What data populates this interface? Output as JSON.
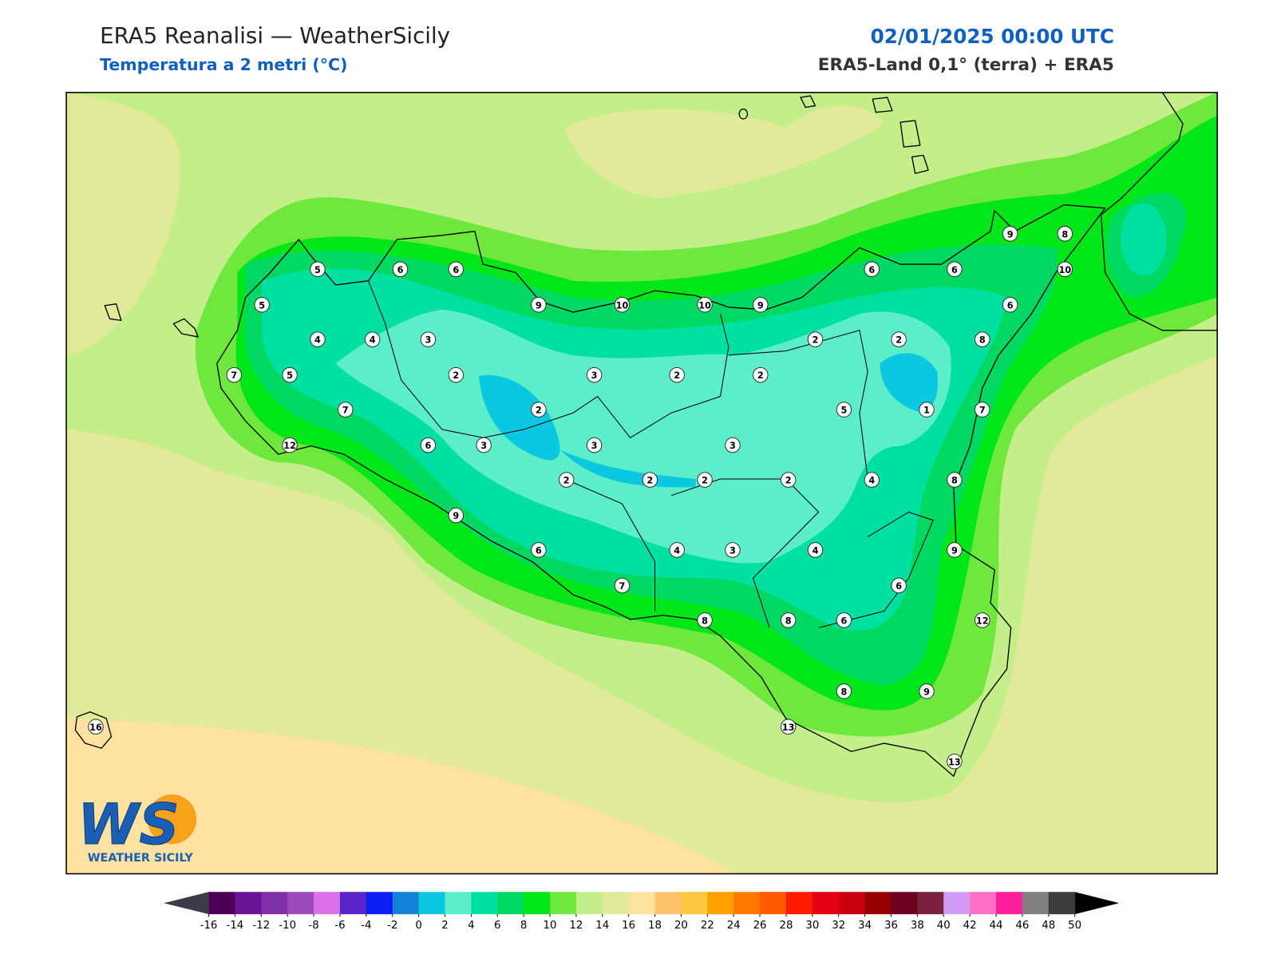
{
  "header": {
    "title": "ERA5 Reanalisi — WeatherSicily",
    "subtitle": "Temperatura a 2 metri (°C)",
    "datetime": "02/01/2025 00:00 UTC",
    "source": "ERA5-Land 0,1° (terra) + ERA5"
  },
  "map": {
    "stations": [
      5,
      6,
      6,
      5,
      9,
      10,
      10,
      9,
      6,
      6,
      9,
      8,
      10,
      6,
      4,
      4,
      3,
      2,
      2,
      8,
      7,
      5,
      2,
      3,
      2,
      2,
      7,
      2,
      5,
      1,
      7,
      12,
      6,
      3,
      3,
      3,
      2,
      2,
      2,
      2,
      4,
      8,
      9,
      6,
      4,
      3,
      4,
      9,
      7,
      6,
      8,
      8,
      6,
      12,
      8,
      9,
      13,
      13,
      16
    ]
  },
  "logo": {
    "initials": "WS",
    "name": "WEATHER SICILY"
  },
  "colorbar": {
    "ticks": [
      -16,
      -14,
      -12,
      -10,
      -8,
      -6,
      -4,
      -2,
      0,
      2,
      4,
      6,
      8,
      10,
      12,
      14,
      16,
      18,
      20,
      22,
      24,
      26,
      28,
      30,
      32,
      34,
      36,
      38,
      40,
      42,
      44,
      46,
      48,
      50
    ],
    "colors": [
      "#4b0055",
      "#6a1595",
      "#7f2fa8",
      "#9c4bbd",
      "#db6fe8",
      "#5a24c8",
      "#0a1ef5",
      "#1482d6",
      "#0bc8e0",
      "#5ceec8",
      "#00e0a0",
      "#00d862",
      "#00e619",
      "#6ee83c",
      "#c3ee8a",
      "#e2ea9a",
      "#ffe1a0",
      "#fec46c",
      "#ffc840",
      "#ffa000",
      "#ff7a00",
      "#ff5a00",
      "#ff1a00",
      "#e60014",
      "#c8000f",
      "#960000",
      "#6e0020",
      "#7a2040",
      "#d09cf5",
      "#ff6ec8",
      "#ff1e9a",
      "#808080",
      "#3c3c3c"
    ],
    "under_color": "#3c3c48",
    "over_color": "#000000"
  }
}
